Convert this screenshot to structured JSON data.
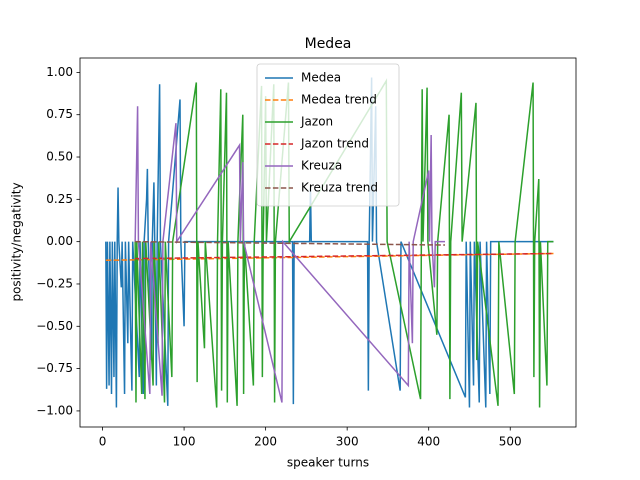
{
  "chart_data": {
    "type": "line",
    "title": "Medea",
    "xlabel": "speaker turns",
    "ylabel": "positivity/negativity",
    "xlim": [
      -27.65,
      580.65
    ],
    "ylim": [
      -1.095,
      1.085
    ],
    "xticks": [
      0,
      100,
      200,
      300,
      400,
      500
    ],
    "yticks": [
      {
        "value": -1,
        "label": "−1.00"
      },
      {
        "value": -0.75,
        "label": "−0.75"
      },
      {
        "value": -0.5,
        "label": "−0.50"
      },
      {
        "value": -0.25,
        "label": "−0.25"
      },
      {
        "value": 0,
        "label": "0.00"
      },
      {
        "value": 0.25,
        "label": "0.25"
      },
      {
        "value": 0.5,
        "label": "0.50"
      },
      {
        "value": 0.75,
        "label": "0.75"
      },
      {
        "value": 1,
        "label": "1.00"
      }
    ],
    "legend": "upper center",
    "series": [
      {
        "name": "Medea",
        "color": "#1f77b4",
        "linestyle": "solid",
        "x": [
          4,
          5,
          6,
          8,
          9,
          11,
          12,
          14,
          15,
          17,
          18,
          19,
          20,
          23,
          24,
          27,
          28,
          31,
          32,
          36,
          37,
          45,
          46,
          50,
          51,
          54,
          55,
          56,
          60,
          61,
          63,
          64,
          66,
          67,
          70,
          71,
          80,
          81,
          95,
          96,
          100,
          101,
          233,
          234,
          235,
          254,
          255,
          256,
          325,
          326,
          327,
          330,
          331,
          335,
          336,
          365,
          366,
          445,
          446,
          450,
          451,
          455,
          456,
          462,
          463,
          470,
          471,
          475,
          476,
          553
        ],
        "values": [
          0,
          -0.87,
          0,
          -0.85,
          0,
          -0.9,
          0,
          -0.8,
          0,
          -0.98,
          0,
          0.32,
          0,
          -0.27,
          0,
          -0.9,
          0,
          -0.6,
          0,
          -0.88,
          0,
          -0.8,
          0,
          -0.9,
          0,
          0.25,
          0.43,
          0,
          -0.7,
          0,
          0.35,
          0,
          -0.85,
          0,
          0.93,
          0,
          -0.97,
          0,
          0.84,
          0,
          -0.5,
          0,
          0,
          -0.96,
          0,
          0,
          0.32,
          0,
          0,
          -0.88,
          0,
          0.97,
          0,
          0.8,
          0,
          -0.88,
          0,
          -0.92,
          0,
          -0.98,
          0,
          -0.85,
          0,
          -0.95,
          0,
          -0.98,
          0,
          -0.9,
          0,
          0
        ]
      },
      {
        "name": "Medea trend",
        "color": "#ff7f0e",
        "linestyle": "dashed",
        "x": [
          4,
          553
        ],
        "values": [
          -0.11,
          -0.07
        ]
      },
      {
        "name": "Jazon",
        "color": "#2ca02c",
        "linestyle": "solid",
        "x": [
          40,
          41,
          42,
          48,
          49,
          52,
          53,
          62,
          63,
          68,
          69,
          76,
          77,
          85,
          86,
          115,
          116,
          117,
          125,
          126,
          140,
          141,
          145,
          146,
          147,
          152,
          153,
          154,
          165,
          166,
          172,
          173,
          174,
          185,
          186,
          195,
          196,
          197,
          200,
          201,
          210,
          211,
          212,
          228,
          229,
          348,
          349,
          390,
          391,
          392,
          393,
          398,
          399,
          410,
          411,
          425,
          426,
          427,
          440,
          441,
          458,
          459,
          460,
          485,
          486,
          505,
          506,
          528,
          529,
          530,
          535,
          536,
          537,
          545,
          546,
          553
        ],
        "values": [
          0,
          -0.95,
          0,
          -0.9,
          0,
          -0.93,
          0,
          -0.85,
          0,
          -0.6,
          0,
          -0.95,
          0,
          -0.8,
          0,
          0.94,
          -0.83,
          0,
          -0.63,
          0,
          -0.98,
          0,
          0.9,
          -0.88,
          0,
          0.88,
          -0.95,
          0,
          -0.97,
          0,
          0.75,
          -0.9,
          0,
          -0.85,
          0,
          0.92,
          -0.8,
          0,
          0.86,
          0,
          0.93,
          -0.95,
          0,
          0.94,
          0,
          0.95,
          0,
          -0.93,
          0,
          0.9,
          0,
          0.91,
          0,
          -0.55,
          0,
          0.75,
          -0.93,
          0,
          0.88,
          0,
          0.82,
          -0.7,
          0,
          -0.97,
          0,
          -0.9,
          0,
          0.94,
          -0.8,
          0,
          0.37,
          -0.98,
          0,
          -0.85,
          0,
          0
        ]
      },
      {
        "name": "Jazon trend",
        "color": "#d62728",
        "linestyle": "dashed",
        "x": [
          40,
          553
        ],
        "values": [
          -0.1,
          -0.07
        ]
      },
      {
        "name": "Kreuza",
        "color": "#9467bd",
        "linestyle": "solid",
        "x": [
          40,
          43,
          44,
          58,
          59,
          73,
          74,
          90,
          91,
          168,
          169,
          172,
          173,
          220,
          221,
          375,
          376,
          380,
          381,
          400,
          401,
          403,
          404,
          407,
          408,
          420
        ],
        "values": [
          0,
          0.8,
          0,
          -0.9,
          0,
          -0.91,
          0,
          0.7,
          0,
          0.57,
          0,
          0.47,
          0,
          -0.95,
          0,
          -0.85,
          0,
          -0.6,
          0,
          0.42,
          0,
          0.63,
          0,
          -0.27,
          0,
          0
        ]
      },
      {
        "name": "Kreuza trend",
        "color": "#8c564b",
        "linestyle": "dashed",
        "x": [
          40,
          420
        ],
        "values": [
          0,
          -0.02
        ]
      }
    ]
  }
}
